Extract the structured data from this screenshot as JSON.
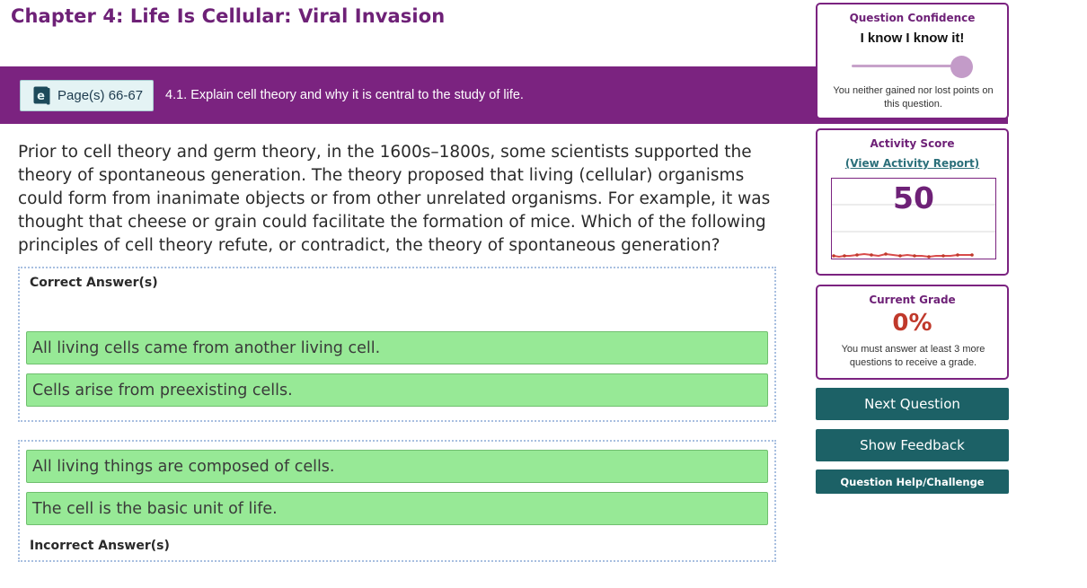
{
  "header": {
    "chapter_title": "Chapter 4: Life Is Cellular: Viral Invasion",
    "page_button_label": "Page(s) 66-67",
    "page_button_icon": "ebook-icon",
    "learning_objective": "4.1. Explain cell theory and why it is central to the study of life."
  },
  "question": {
    "text": "Prior to cell theory and germ theory, in the 1600s–1800s, some scientists supported the theory of spontaneous generation. The theory proposed that living (cellular) organisms could form from inanimate objects or from other unrelated organisms. For example, it was thought that cheese or grain could facilitate the formation of mice. Which of the following principles of cell theory refute, or contradict, the theory of spontaneous generation?"
  },
  "correct_answers": {
    "heading": "Correct Answer(s)",
    "items": [
      "All living cells came from another living cell.",
      "Cells arise from preexisting cells."
    ]
  },
  "incorrect_answers": {
    "heading": "Incorrect Answer(s)",
    "items": [
      "All living things are composed of cells.",
      "The cell is the basic unit of life."
    ]
  },
  "confidence": {
    "title": "Question Confidence",
    "value": "I know I know it!",
    "slider_level": 1.0,
    "note": "You neither gained nor lost points on this question."
  },
  "activity_score": {
    "title": "Activity Score",
    "link_label": "(View Activity Report)",
    "value": "50"
  },
  "current_grade": {
    "title": "Current Grade",
    "value": "0%",
    "note": "You must answer at least 3 more questions to receive a grade."
  },
  "buttons": {
    "next": "Next Question",
    "feedback": "Show Feedback",
    "help": "Question Help/Challenge"
  },
  "colors": {
    "brand_purple": "#7b2380",
    "teal_button": "#1c6166",
    "answer_green": "#97e996",
    "grade_red": "#c0392b"
  }
}
